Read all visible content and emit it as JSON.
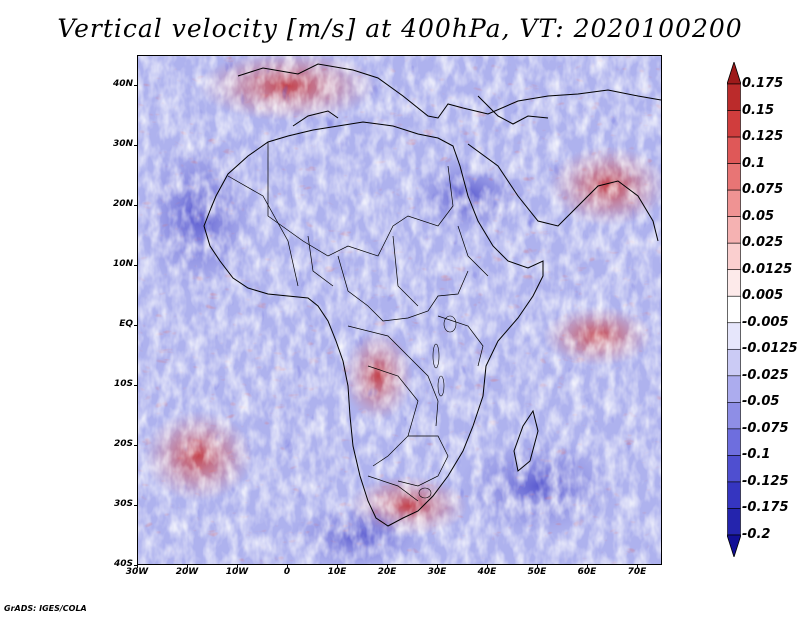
{
  "title": "Vertical velocity [m/s] at 400hPa, VT: 2020100200",
  "footer": "GrADS: IGES/COLA",
  "map": {
    "projection": "latlon",
    "lon_range": [
      -30,
      75
    ],
    "lat_range": [
      -40,
      45
    ],
    "lat_labels": [
      "40N",
      "30N",
      "20N",
      "10N",
      "EQ",
      "10S",
      "20S",
      "30S",
      "40S"
    ],
    "lon_labels": [
      "30W",
      "20W",
      "10W",
      "0",
      "10E",
      "20E",
      "30E",
      "40E",
      "50E",
      "60E",
      "70E"
    ],
    "field": "vertical velocity",
    "colors": {
      "frame": "#000000",
      "coastline": "#000000",
      "background": "#ffffff"
    }
  },
  "colorbar": {
    "labels": [
      "0.175",
      "0.15",
      "0.125",
      "0.1",
      "0.075",
      "0.05",
      "0.025",
      "0.0125",
      "0.005",
      "-0.005",
      "-0.0125",
      "-0.025",
      "-0.05",
      "-0.075",
      "-0.1",
      "-0.125",
      "-0.175",
      "-0.2"
    ],
    "colors": [
      "#9e1a1a",
      "#bb2b2b",
      "#d03d3d",
      "#df5858",
      "#e87575",
      "#ef9393",
      "#f5b2b2",
      "#facfcf",
      "#fdeaea",
      "#ffffff",
      "#e6e6fb",
      "#cbcbf5",
      "#acacee",
      "#8e8ee6",
      "#6e6ede",
      "#4f4fd0",
      "#3535c0",
      "#2424ad",
      "#120f96"
    ]
  }
}
